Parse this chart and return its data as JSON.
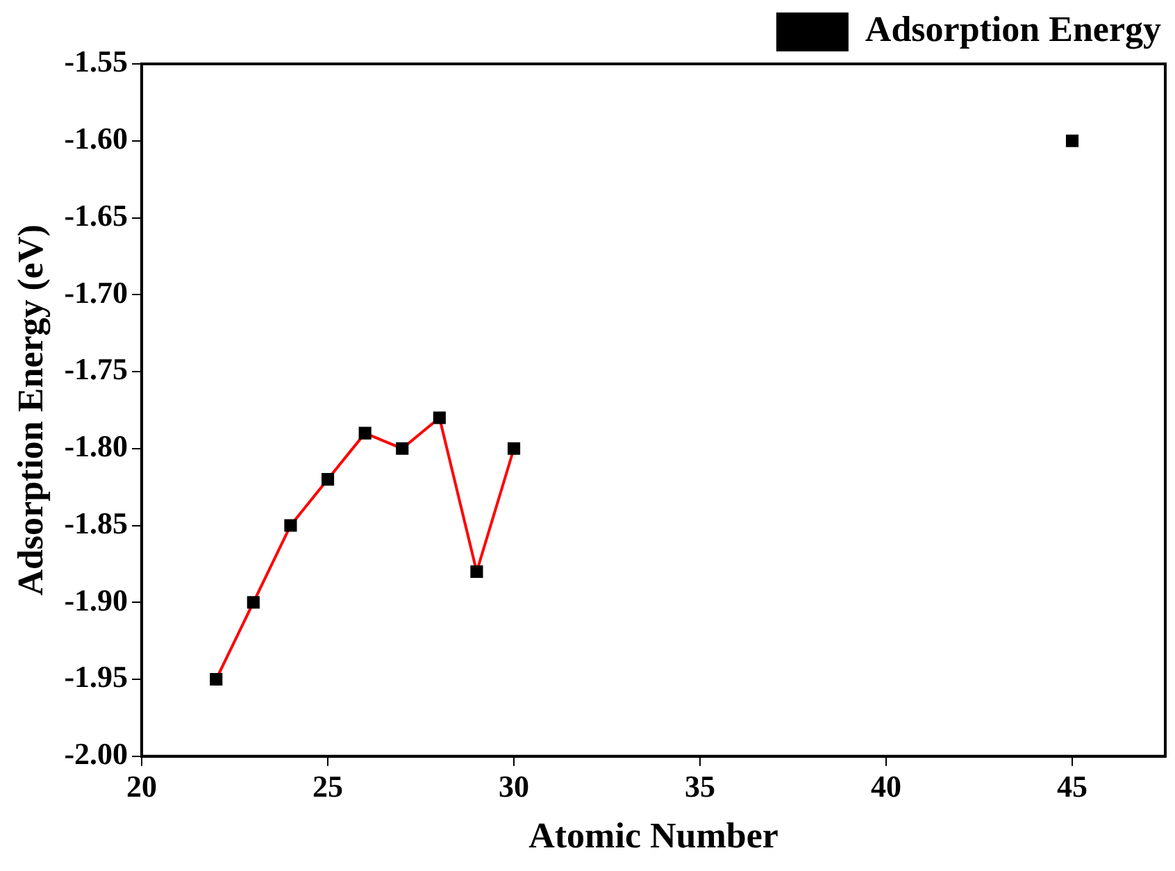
{
  "chart_data": {
    "type": "line",
    "xlabel": "Atomic Number",
    "ylabel": "Adsorption Energy (eV)",
    "xlim": [
      20,
      47.5
    ],
    "xticks": [
      20,
      25,
      30,
      35,
      40,
      45
    ],
    "ylim": [
      -2,
      -1.55
    ],
    "yticks": [
      {
        "value": -2,
        "label": "-2.00"
      },
      -1.95,
      {
        "value": -1.9,
        "label": "-1.90"
      },
      -1.85,
      {
        "value": -1.8,
        "label": "-1.80"
      },
      -1.75,
      {
        "value": -1.7,
        "label": "-1.70"
      },
      -1.65,
      {
        "value": -1.6,
        "label": "-1.60"
      },
      -1.55
    ],
    "grid": false,
    "legend": "top right",
    "marker": "square",
    "line_style": "solid",
    "series": [
      {
        "name": "Adsorption Energy",
        "color": "#ff0000",
        "x": [
          22,
          23,
          24,
          25,
          26,
          27,
          28,
          29,
          30
        ],
        "values": [
          -1.95,
          -1.9,
          -1.85,
          -1.82,
          -1.79,
          -1.8,
          -1.78,
          -1.88,
          -1.8
        ]
      },
      {
        "type": "scatter",
        "color": "#000000",
        "x": [
          45
        ],
        "values": [
          -1.6
        ]
      }
    ]
  }
}
